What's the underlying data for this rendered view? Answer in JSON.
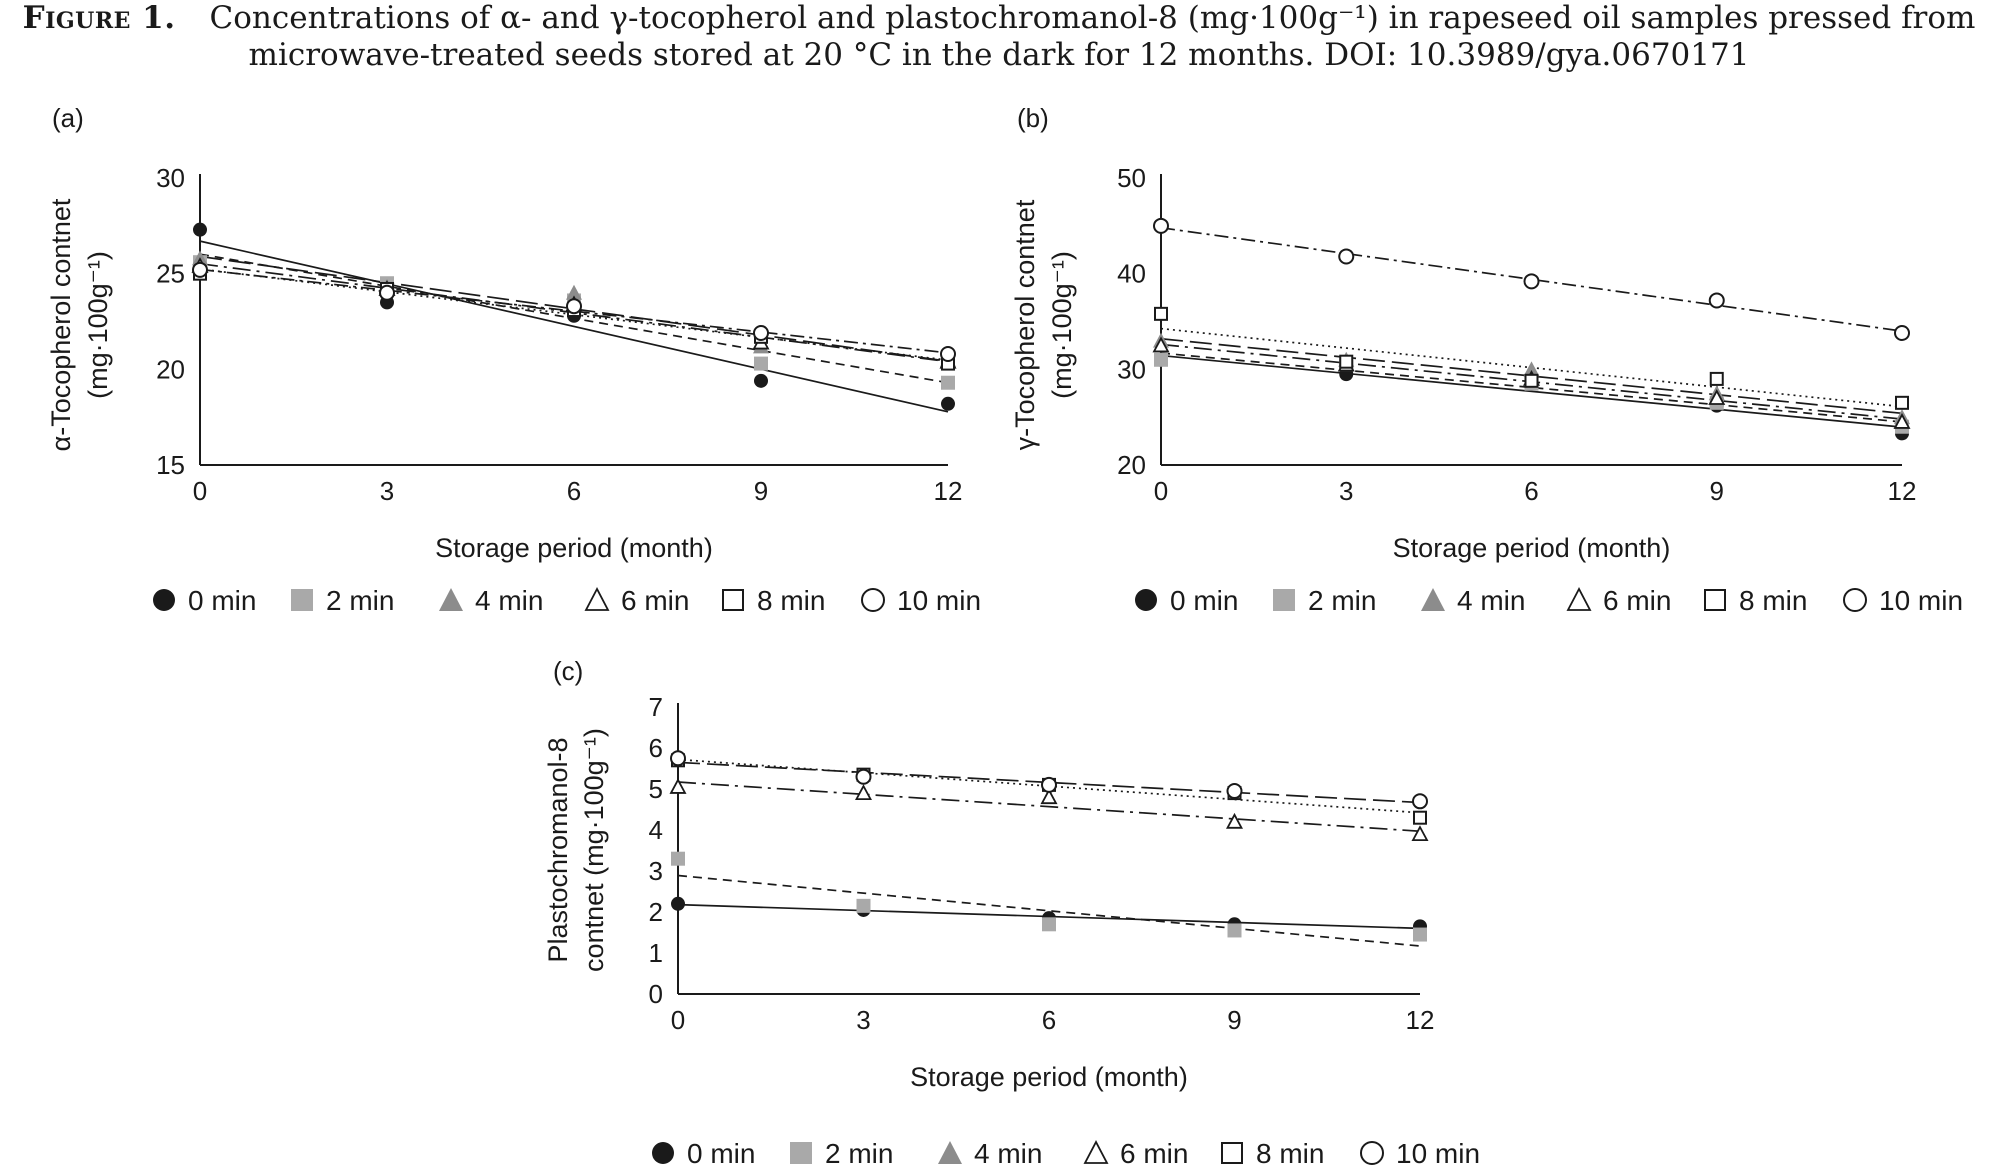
{
  "caption": {
    "lead": "Figure 1.",
    "line1": "Concentrations of α- and γ-tocopherol and plastochromanol-8 (mg·100g⁻¹) in rapeseed oil samples pressed from",
    "line2": "microwave-treated seeds stored at 20 °C in the dark for 12 months. DOI: 10.3989/gya.0670171"
  },
  "legend": {
    "entries": [
      {
        "label": "0 min",
        "marker": "filled-circle"
      },
      {
        "label": "2 min",
        "marker": "gray-square"
      },
      {
        "label": "4 min",
        "marker": "gray-triangle"
      },
      {
        "label": "6 min",
        "marker": "open-triangle"
      },
      {
        "label": "8 min",
        "marker": "open-square"
      },
      {
        "label": "10 min",
        "marker": "open-circle"
      }
    ]
  },
  "colors": {
    "ink": "#1a1a1a",
    "gray_marker": "#a9a9a9",
    "triangle_gray": "#8c8c8c"
  },
  "chart_data": [
    {
      "panel": "(a)",
      "type": "scatter",
      "xlabel": "Storage period (month)",
      "ylabel_lines": [
        "α-Tocopherol contnet",
        "(mg·100g⁻¹)"
      ],
      "x": [
        0,
        3,
        6,
        9,
        12
      ],
      "xticks": [
        0,
        3,
        6,
        9,
        12
      ],
      "ylim": [
        15,
        30
      ],
      "yticks": [
        15,
        20,
        25,
        30
      ],
      "series": [
        {
          "name": "0 min",
          "marker": "filled-circle",
          "trend": "solid",
          "values": [
            27.3,
            23.5,
            22.8,
            19.4,
            18.2
          ]
        },
        {
          "name": "2 min",
          "marker": "gray-square",
          "trend": "dashed",
          "values": [
            25.6,
            24.5,
            23.6,
            20.3,
            19.3
          ]
        },
        {
          "name": "4 min",
          "marker": "gray-triangle",
          "trend": "longdash",
          "values": [
            25.8,
            24.3,
            24.0,
            21.2,
            20.5
          ]
        },
        {
          "name": "6 min",
          "marker": "open-triangle",
          "trend": "dashdot",
          "values": [
            25.4,
            24.2,
            23.4,
            21.4,
            20.4
          ]
        },
        {
          "name": "8 min",
          "marker": "open-square",
          "trend": "dotted",
          "values": [
            25.0,
            24.2,
            23.1,
            21.7,
            20.3
          ]
        },
        {
          "name": "10 min",
          "marker": "open-circle",
          "trend": "dashdot2",
          "values": [
            25.2,
            24.0,
            23.3,
            21.9,
            20.8
          ]
        }
      ]
    },
    {
      "panel": "(b)",
      "type": "scatter",
      "xlabel": "Storage period (month)",
      "ylabel_lines": [
        "γ-Tocopherol contnet",
        "(mg·100g⁻¹)"
      ],
      "x": [
        0,
        3,
        6,
        9,
        12
      ],
      "xticks": [
        0,
        3,
        6,
        9,
        12
      ],
      "ylim": [
        20,
        50
      ],
      "yticks": [
        20,
        30,
        40,
        50
      ],
      "series": [
        {
          "name": "0 min",
          "marker": "filled-circle",
          "trend": "solid",
          "values": [
            31.0,
            29.5,
            28.5,
            26.2,
            23.3
          ]
        },
        {
          "name": "2 min",
          "marker": "gray-square",
          "trend": "dashed",
          "values": [
            31.0,
            30.5,
            28.5,
            26.5,
            24.0
          ]
        },
        {
          "name": "4 min",
          "marker": "gray-triangle",
          "trend": "longdash",
          "values": [
            33.0,
            31.0,
            30.0,
            27.5,
            25.0
          ]
        },
        {
          "name": "6 min",
          "marker": "open-triangle",
          "trend": "dashdot",
          "values": [
            32.5,
            30.5,
            29.0,
            27.0,
            24.5
          ]
        },
        {
          "name": "8 min",
          "marker": "open-square",
          "trend": "dotted",
          "values": [
            35.8,
            30.8,
            28.8,
            29.0,
            26.5
          ]
        },
        {
          "name": "10 min",
          "marker": "open-circle",
          "trend": "dashdot2",
          "values": [
            45.0,
            41.8,
            39.2,
            37.2,
            33.8
          ]
        }
      ]
    },
    {
      "panel": "(c)",
      "type": "scatter",
      "xlabel": "Storage period (month)",
      "ylabel_lines": [
        "Plastochromanol-8",
        "contnet (mg·100g⁻¹)"
      ],
      "x": [
        0,
        3,
        6,
        9,
        12
      ],
      "xticks": [
        0,
        3,
        6,
        9,
        12
      ],
      "ylim": [
        0,
        7
      ],
      "yticks": [
        0,
        1,
        2,
        3,
        4,
        5,
        6,
        7
      ],
      "series": [
        {
          "name": "0 min",
          "marker": "filled-circle",
          "trend": "solid",
          "values": [
            2.2,
            2.05,
            1.85,
            1.7,
            1.65
          ]
        },
        {
          "name": "2 min",
          "marker": "gray-square",
          "trend": "dashed",
          "values": [
            3.3,
            2.15,
            1.7,
            1.55,
            1.45
          ]
        },
        {
          "name": "6 min",
          "marker": "open-triangle",
          "trend": "dashdot",
          "values": [
            5.05,
            4.9,
            4.8,
            4.2,
            3.9
          ]
        },
        {
          "name": "8 min",
          "marker": "open-square",
          "trend": "dotted",
          "values": [
            5.7,
            5.35,
            5.1,
            4.9,
            4.3
          ]
        },
        {
          "name": "10 min",
          "marker": "open-circle",
          "trend": "longdash",
          "values": [
            5.75,
            5.3,
            5.1,
            4.95,
            4.7
          ]
        }
      ]
    }
  ]
}
